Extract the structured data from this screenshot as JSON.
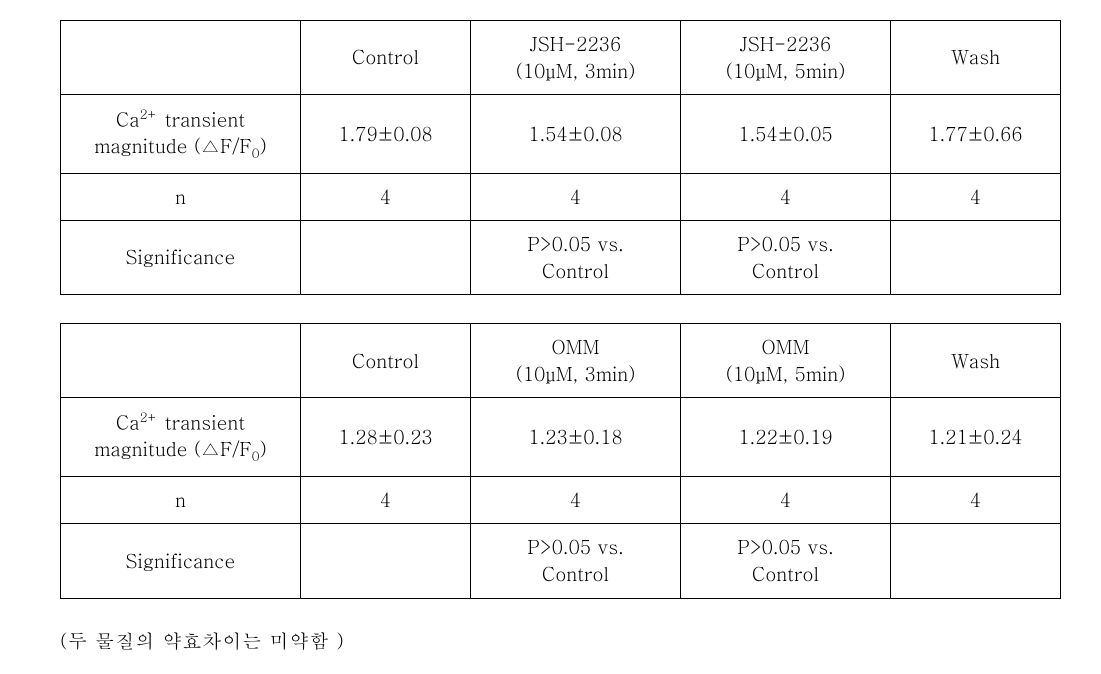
{
  "table1": {
    "headers": {
      "col0": "",
      "col1": "Control",
      "col2_line1": "JSH-2236",
      "col2_line2": "(10μM, 3min)",
      "col3_line1": "JSH-2236",
      "col3_line2": "(10μM, 5min)",
      "col4": "Wash"
    },
    "row_magnitude": {
      "label_before": "Ca",
      "label_sup": "2+",
      "label_mid": " transient",
      "label_line2_before": "magnitude (△F/F",
      "label_sub": "0",
      "label_line2_after": ")",
      "control": "1.79±0.08",
      "t3": "1.54±0.08",
      "t5": "1.54±0.05",
      "wash": "1.77±0.66"
    },
    "row_n": {
      "label": "n",
      "control": "4",
      "t3": "4",
      "t5": "4",
      "wash": "4"
    },
    "row_sig": {
      "label": "Significance",
      "control": "",
      "t3_line1": "P>0.05 vs.",
      "t3_line2": "Control",
      "t5_line1": "P>0.05 vs.",
      "t5_line2": "Control",
      "wash": ""
    }
  },
  "table2": {
    "headers": {
      "col0": "",
      "col1": "Control",
      "col2_line1": "OMM",
      "col2_line2": "(10μM, 3min)",
      "col3_line1": "OMM",
      "col3_line2": "(10μM, 5min)",
      "col4": "Wash"
    },
    "row_magnitude": {
      "label_before": "Ca",
      "label_sup": "2+",
      "label_mid": " transient",
      "label_line2_before": "magnitude (△F/F",
      "label_sub": "0",
      "label_line2_after": ")",
      "control": "1.28±0.23",
      "t3": "1.23±0.18",
      "t5": "1.22±0.19",
      "wash": "1.21±0.24"
    },
    "row_n": {
      "label": "n",
      "control": "4",
      "t3": "4",
      "t5": "4",
      "wash": "4"
    },
    "row_sig": {
      "label": "Significance",
      "control": "",
      "t3_line1": "P>0.05 vs.",
      "t3_line2": "Control",
      "t5_line1": "P>0.05 vs.",
      "t5_line2": "Control",
      "wash": ""
    }
  },
  "footnote": "(두 물질의 약효차이는 미약함 )"
}
